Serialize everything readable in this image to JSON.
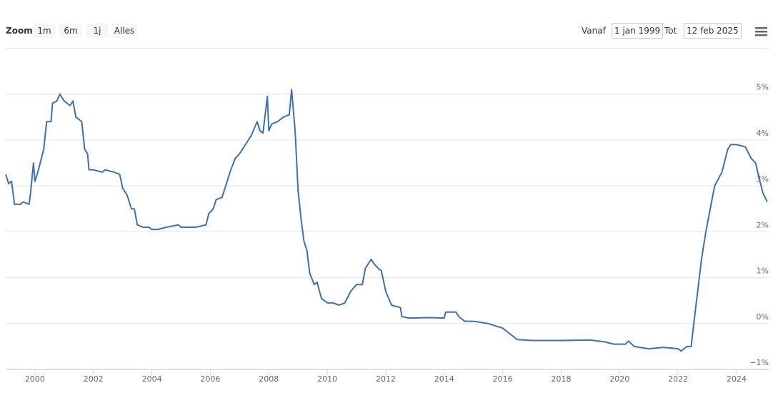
{
  "range_selector": {
    "zoom_label": "Zoom",
    "buttons": [
      "1m",
      "6m",
      "1j",
      "Alles"
    ],
    "from_label": "Vanaf",
    "from": "1 jan 1999",
    "to_label": "Tot",
    "to": "12 feb 2025"
  },
  "chart_data": {
    "type": "line",
    "color": "#3c6fb6",
    "grid": true,
    "x": [
      1999.0,
      1999.1,
      1999.2,
      1999.3,
      1999.5,
      1999.6,
      1999.8,
      1999.85,
      1999.95,
      2000.0,
      2000.1,
      2000.3,
      2000.4,
      2000.55,
      2000.6,
      2000.75,
      2000.85,
      2001.0,
      2001.2,
      2001.3,
      2001.4,
      2001.6,
      2001.7,
      2001.8,
      2001.85,
      2002.0,
      2002.3,
      2002.4,
      2002.7,
      2002.9,
      2003.0,
      2003.15,
      2003.3,
      2003.4,
      2003.5,
      2003.7,
      2003.9,
      2004.0,
      2004.2,
      2004.5,
      2004.9,
      2005.0,
      2005.5,
      2005.85,
      2005.95,
      2006.1,
      2006.2,
      2006.4,
      2006.55,
      2006.7,
      2006.85,
      2007.0,
      2007.2,
      2007.4,
      2007.6,
      2007.7,
      2007.8,
      2007.95,
      2008.0,
      2008.1,
      2008.3,
      2008.5,
      2008.7,
      2008.78,
      2008.9,
      2009.0,
      2009.1,
      2009.2,
      2009.3,
      2009.4,
      2009.55,
      2009.65,
      2009.8,
      2010.0,
      2010.2,
      2010.4,
      2010.6,
      2010.8,
      2011.0,
      2011.2,
      2011.3,
      2011.5,
      2011.6,
      2011.75,
      2011.85,
      2012.0,
      2012.2,
      2012.5,
      2012.55,
      2012.8,
      2013.5,
      2014.0,
      2014.05,
      2014.4,
      2014.5,
      2014.7,
      2015.0,
      2015.5,
      2016.0,
      2016.2,
      2016.5,
      2017.0,
      2018.0,
      2019.0,
      2019.5,
      2019.8,
      2020.2,
      2020.3,
      2020.5,
      2021.0,
      2021.5,
      2022.0,
      2022.1,
      2022.3,
      2022.45,
      2022.5,
      2022.65,
      2022.8,
      2022.95,
      2023.1,
      2023.25,
      2023.5,
      2023.7,
      2023.8,
      2024.0,
      2024.3,
      2024.5,
      2024.65,
      2024.8,
      2024.9,
      2025.05
    ],
    "values": [
      3.25,
      3.05,
      3.1,
      2.6,
      2.6,
      2.65,
      2.6,
      2.85,
      3.5,
      3.1,
      3.3,
      3.8,
      4.4,
      4.4,
      4.8,
      4.85,
      5.0,
      4.85,
      4.75,
      4.85,
      4.5,
      4.4,
      3.8,
      3.7,
      3.35,
      3.35,
      3.3,
      3.35,
      3.3,
      3.25,
      2.95,
      2.8,
      2.5,
      2.5,
      2.15,
      2.1,
      2.1,
      2.05,
      2.05,
      2.1,
      2.15,
      2.1,
      2.1,
      2.15,
      2.4,
      2.5,
      2.7,
      2.75,
      3.05,
      3.35,
      3.6,
      3.7,
      3.9,
      4.1,
      4.4,
      4.2,
      4.15,
      4.95,
      4.2,
      4.35,
      4.4,
      4.5,
      4.55,
      5.1,
      4.2,
      2.9,
      2.3,
      1.8,
      1.6,
      1.1,
      0.85,
      0.9,
      0.55,
      0.45,
      0.45,
      0.4,
      0.45,
      0.7,
      0.85,
      0.85,
      1.2,
      1.4,
      1.3,
      1.2,
      1.15,
      0.7,
      0.4,
      0.35,
      0.15,
      0.12,
      0.13,
      0.12,
      0.25,
      0.25,
      0.15,
      0.05,
      0.05,
      0.0,
      -0.1,
      -0.2,
      -0.35,
      -0.37,
      -0.37,
      -0.36,
      -0.4,
      -0.45,
      -0.45,
      -0.38,
      -0.5,
      -0.55,
      -0.52,
      -0.55,
      -0.6,
      -0.5,
      -0.5,
      -0.2,
      0.6,
      1.4,
      2.0,
      2.5,
      3.0,
      3.3,
      3.8,
      3.9,
      3.9,
      3.85,
      3.6,
      3.5,
      3.1,
      2.85,
      2.65
    ],
    "xlim": [
      1999.0,
      2025.1
    ],
    "xticks": [
      2000,
      2002,
      2004,
      2006,
      2008,
      2010,
      2012,
      2014,
      2016,
      2018,
      2020,
      2022,
      2024
    ],
    "ylim": [
      -1,
      6
    ],
    "yticks": [
      {
        "value": -1,
        "label": "−1%"
      },
      {
        "value": 0,
        "label": "0%"
      },
      {
        "value": 1,
        "label": "1%"
      },
      {
        "value": 2,
        "label": "2%"
      },
      {
        "value": 3,
        "label": "3%"
      },
      {
        "value": 4,
        "label": "4%"
      },
      {
        "value": 5,
        "label": "5%"
      }
    ]
  }
}
